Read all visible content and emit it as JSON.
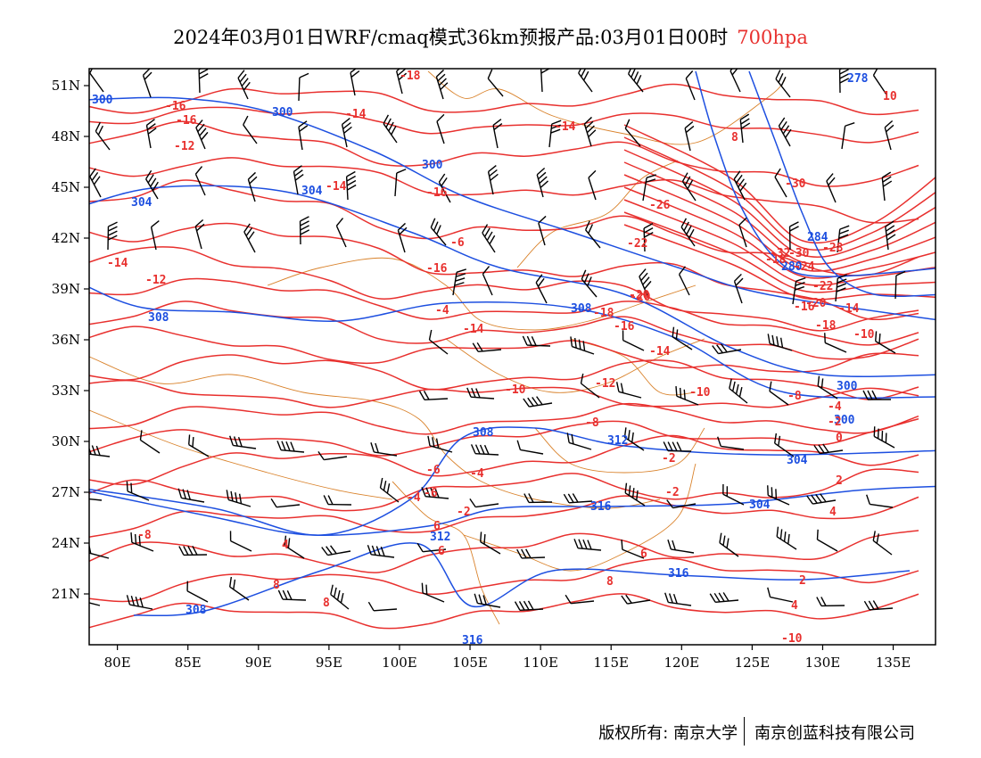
{
  "title": {
    "main": "2024年03月01日WRF/cmaq模式36km预报产品:03月01日00时",
    "level": "700hpa"
  },
  "colors": {
    "height_contour": "#1d4fe0",
    "temp_contour": "#e8302e",
    "wind_barb": "#000000",
    "boundary": "#d9822b",
    "frame": "#000000"
  },
  "axes": {
    "x_ticks": [
      "80E",
      "85E",
      "90E",
      "95E",
      "100E",
      "105E",
      "110E",
      "115E",
      "120E",
      "125E",
      "130E",
      "135E"
    ],
    "y_ticks": [
      "51N",
      "48N",
      "45N",
      "42N",
      "39N",
      "36N",
      "33N",
      "30N",
      "27N",
      "24N",
      "21N"
    ],
    "lon_range": [
      78,
      138
    ],
    "lat_range": [
      18,
      52
    ]
  },
  "height_labels": [
    "300",
    "300",
    "300",
    "304",
    "304",
    "278",
    "284",
    "280",
    "300",
    "308",
    "308",
    "312",
    "312",
    "316",
    "316",
    "316",
    "308",
    "304",
    "308",
    "300",
    "304"
  ],
  "temp_labels": [
    "-18",
    "-16",
    "-16",
    "-14",
    "-12",
    "-14",
    "-12",
    "-16",
    "-14",
    "-16",
    "-20",
    "-18",
    "-16",
    "-14",
    "-14",
    "-10",
    "-12",
    "-10",
    "-8",
    "-8",
    "-6",
    "-4",
    "-2",
    "-6",
    "-4",
    "-2",
    "-2",
    "6",
    "6",
    "4",
    "6",
    "8",
    "8",
    "8",
    "-8",
    "-10",
    "-26",
    "-22",
    "-20",
    "-18",
    "-30",
    "-32",
    "-30",
    "-28",
    "-24",
    "-22",
    "-20",
    "-16",
    "-18",
    "-14",
    "-10",
    "-14",
    "-4",
    "-2",
    "0",
    "2",
    "4",
    "2",
    "4",
    "8",
    "10",
    "-6",
    "-4"
  ],
  "footer": {
    "left": "版权所有: 南京大学",
    "right": "南京创蓝科技有限公司"
  }
}
